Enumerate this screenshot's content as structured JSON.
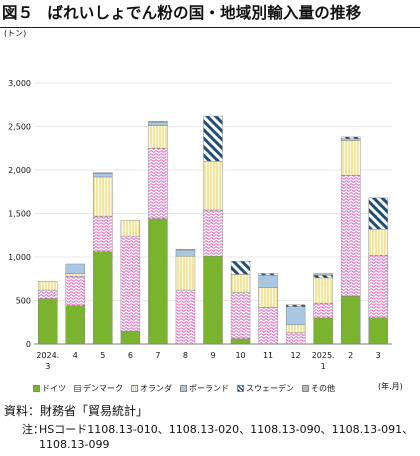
{
  "title": {
    "fig": "図５",
    "text": "ばれいしょでん粉の国・地域別輸入量の推移"
  },
  "chart_data": {
    "type": "bar",
    "stacked": true,
    "unit_label": "(トン)",
    "x_unit": "(年.月)",
    "ylim": [
      0,
      3000
    ],
    "yticks": [
      "0",
      "500",
      "1,000",
      "1,500",
      "2,000",
      "2,500",
      "3,000"
    ],
    "ytick_values": [
      0,
      500,
      1000,
      1500,
      2000,
      2500,
      3000
    ],
    "categories": [
      [
        "2024.",
        "3"
      ],
      [
        "4"
      ],
      [
        "5"
      ],
      [
        "6"
      ],
      [
        "7"
      ],
      [
        "8"
      ],
      [
        "9"
      ],
      [
        "10"
      ],
      [
        "11"
      ],
      [
        "12"
      ],
      [
        "2025.",
        "1"
      ],
      [
        "2"
      ],
      [
        "3"
      ]
    ],
    "series": [
      {
        "name": "ドイツ",
        "color": "#7ab32e",
        "pattern": "solid",
        "values": [
          520,
          440,
          1060,
          150,
          1440,
          0,
          1010,
          60,
          0,
          0,
          300,
          550,
          300
        ]
      },
      {
        "name": "デンマーク",
        "color": "#e064c0",
        "pattern": "wave",
        "values": [
          100,
          340,
          410,
          1090,
          810,
          620,
          530,
          530,
          420,
          130,
          170,
          1390,
          720
        ]
      },
      {
        "name": "オランダ",
        "color": "#e8cc55",
        "pattern": "vlines",
        "values": [
          100,
          30,
          450,
          180,
          260,
          390,
          560,
          210,
          230,
          90,
          290,
          400,
          300
        ]
      },
      {
        "name": "ポーランド",
        "color": "#a9c7e3",
        "pattern": "solid",
        "values": [
          0,
          110,
          40,
          0,
          40,
          70,
          0,
          0,
          140,
          210,
          0,
          20,
          0
        ]
      },
      {
        "name": "スウェーデン",
        "color": "#1f4e79",
        "pattern": "diagonal",
        "values": [
          0,
          0,
          0,
          0,
          0,
          0,
          520,
          150,
          20,
          20,
          30,
          20,
          360
        ]
      },
      {
        "name": "その他",
        "color": "#b7b7b7",
        "pattern": "solid",
        "values": [
          0,
          0,
          10,
          0,
          10,
          10,
          0,
          0,
          0,
          0,
          20,
          0,
          0
        ]
      }
    ]
  },
  "source": "資料：財務省「貿易統計」",
  "note": {
    "label": "注：",
    "text": "HSコード1108.13-010、1108.13-020、1108.13-090、1108.13-091、1108.13-099"
  }
}
